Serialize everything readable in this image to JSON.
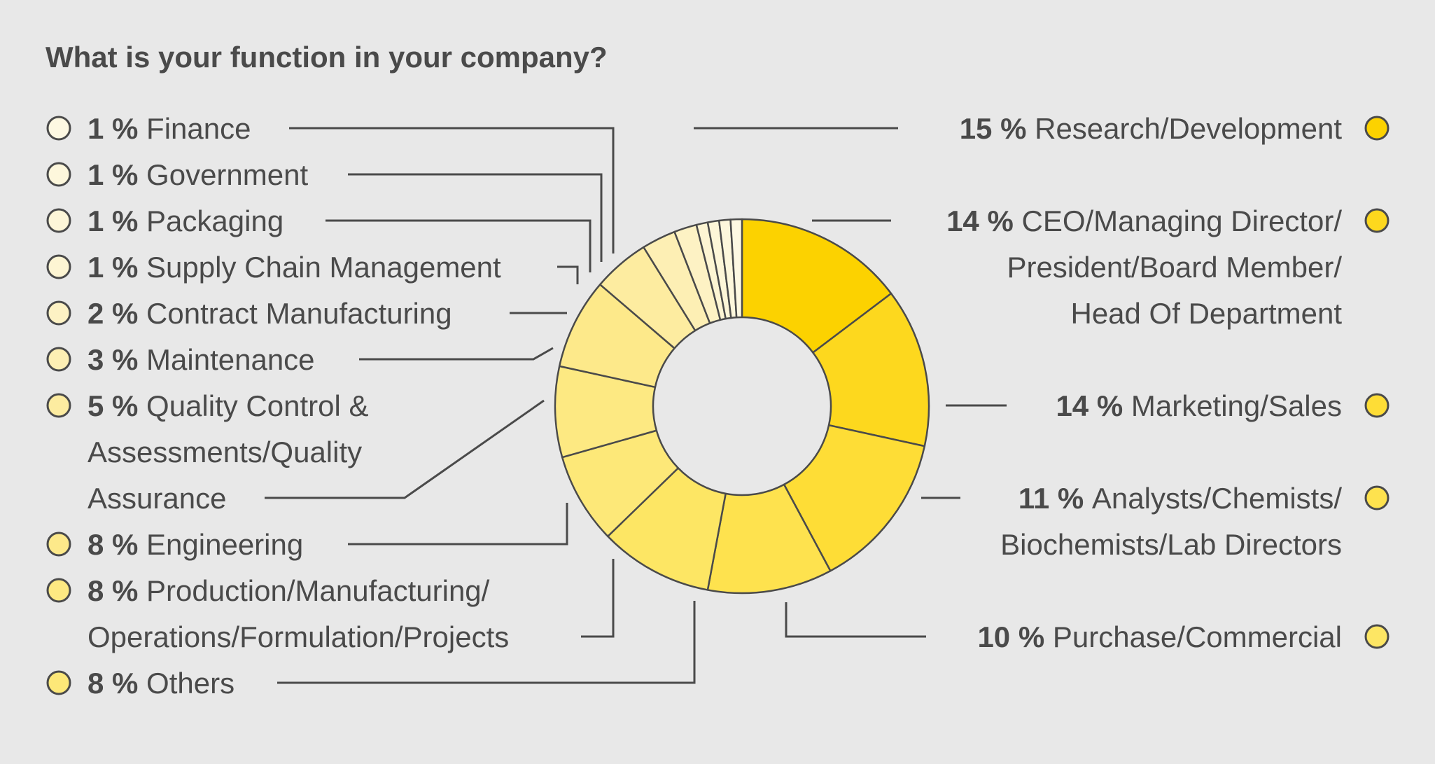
{
  "chart_data": {
    "type": "pie",
    "variant": "donut",
    "title": "What is your function in your company?",
    "series": [
      {
        "name": "Research/Development",
        "value": 15,
        "pct_label": "15 %",
        "lines": [
          "Research/Development"
        ],
        "color": "#fcd200"
      },
      {
        "name": "CEO/Managing Director/President/Board Member/Head Of Department",
        "value": 14,
        "pct_label": "14 %",
        "lines": [
          "CEO/Managing Director/",
          "President/Board Member/",
          "Head Of Department"
        ],
        "color": "#fdd81e"
      },
      {
        "name": "Marketing/Sales",
        "value": 14,
        "pct_label": "14 %",
        "lines": [
          "Marketing/Sales"
        ],
        "color": "#fedd36"
      },
      {
        "name": "Analysts/Chemists/Biochemists/Lab Directors",
        "value": 11,
        "pct_label": "11 %",
        "lines": [
          "Analysts/Chemists/",
          "Biochemists/Lab Directors"
        ],
        "color": "#fee24e"
      },
      {
        "name": "Purchase/Commercial",
        "value": 10,
        "pct_label": "10 %",
        "lines": [
          "Purchase/Commercial"
        ],
        "color": "#fde664"
      },
      {
        "name": "Others",
        "value": 8,
        "pct_label": "8 %",
        "lines": [
          "Others"
        ],
        "color": "#fde878"
      },
      {
        "name": "Production/Manufacturing/Operations/Formulation/Projects",
        "value": 8,
        "pct_label": "8 %",
        "lines": [
          "Production/Manufacturing/",
          "Operations/Formulation/Projects"
        ],
        "color": "#fde982"
      },
      {
        "name": "Engineering",
        "value": 8,
        "pct_label": "8 %",
        "lines": [
          "Engineering"
        ],
        "color": "#fde98a"
      },
      {
        "name": "Quality Control & Assessments/Quality Assurance",
        "value": 5,
        "pct_label": "5 %",
        "lines": [
          "Quality Control &",
          "Assessments/Quality",
          "Assurance"
        ],
        "color": "#fdeca0"
      },
      {
        "name": "Maintenance",
        "value": 3,
        "pct_label": "3 %",
        "lines": [
          "Maintenance"
        ],
        "color": "#fdefb4"
      },
      {
        "name": "Contract Manufacturing",
        "value": 2,
        "pct_label": "2 %",
        "lines": [
          "Contract Manufacturing"
        ],
        "color": "#fdf2c4"
      },
      {
        "name": "Supply Chain Management",
        "value": 1,
        "pct_label": "1 %",
        "lines": [
          "Supply Chain Management"
        ],
        "color": "#fdf5d3"
      },
      {
        "name": "Packaging",
        "value": 1,
        "pct_label": "1 %",
        "lines": [
          "Packaging"
        ],
        "color": "#fdf6d8"
      },
      {
        "name": "Government",
        "value": 1,
        "pct_label": "1 %",
        "lines": [
          "Government"
        ],
        "color": "#fdf7dc"
      },
      {
        "name": "Finance",
        "value": 1,
        "pct_label": "1 %",
        "lines": [
          "Finance"
        ],
        "color": "#fdf8e2"
      }
    ],
    "legend_placement": "left and right columns",
    "stroke_color": "#4a4a4a"
  }
}
